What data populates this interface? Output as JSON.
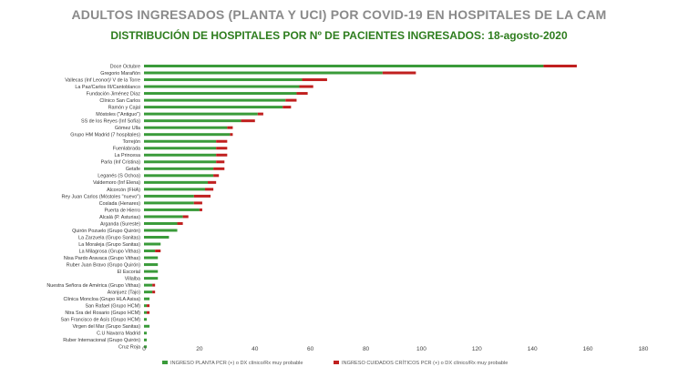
{
  "title": "ADULTOS INGRESADOS (PLANTA Y UCI) POR COVID-19 EN HOSPITALES DE LA CAM",
  "subtitle": "DISTRIBUCIÓN DE HOSPITALES POR Nº DE PACIENTES INGRESADOS: 18-agosto-2020",
  "chart_data": {
    "type": "bar",
    "orientation": "horizontal",
    "stacked": true,
    "title": "DISTRIBUCIÓN DE HOSPITALES POR Nº DE PACIENTES INGRESADOS: 18-agosto-2020",
    "xlim": [
      0,
      180
    ],
    "xticks": [
      0,
      20,
      40,
      60,
      80,
      100,
      120,
      140,
      160,
      180
    ],
    "grid": false,
    "legend_position": "bottom",
    "categories": [
      "Doce Octubre",
      "Gregorio Marañón",
      "Vallecas (Inf Leonor)/ V de la Torre",
      "La Paz/Carlos III/Cantoblanco",
      "Fundación Jiménez Díaz",
      "Clínico San Carlos",
      "Ramón y Cajal",
      "Móstoles (\"Antiguo\")",
      "SS de los Reyes (Inf Sofía)",
      "Gómez Ulla",
      "Grupo HM Madrid (7 hospitales)",
      "Torrejón",
      "Fuenlabrada",
      "La Princesa",
      "Parla (Inf Cristina)",
      "Getafe",
      "Leganés (S Ochoa)",
      "Valdemoro (Inf Elena)",
      "Alcorcón (FHA)",
      "Rey Juan Carlos (Móstoles \"nuevo\")",
      "Coslada (Henares)",
      "Puerta de Hierro",
      "Alcalá (P. Asturias)",
      "Arganda (Sureste)",
      "Quirón Pozuelo (Grupo Quirón)",
      "La Zarzuela (Grupo Sanitas)",
      "La Moraleja (Grupo Sanitas)",
      "La Milagrosa (Grupo Vithas)",
      "Nisa Pardo Aravaca (Grupo Vithas)",
      "Ruber Juan Bravo (Grupo Quirón)",
      "El Escorial",
      "Villalba",
      "Nuestra Señora de América (Grupo Vithas)",
      "Aranjuez (Tajo)",
      "Clínica Moncloa (Grupo HLA Asisa)",
      "San Rafael (Grupo HCM)",
      "Ntra Sra del Rosario (Grupo HCM)",
      "San Francisco de Asís (Grupo HCM)",
      "Virgen del Mar (Grupo Sanitas)",
      "C.U Navarra Madrid",
      "Ruber Internacional (Grupo Quirón)",
      "Cruz Roja"
    ],
    "series": [
      {
        "name": "INGRESO PLANTA PCR (+) o DX clínico/Rx muy probable",
        "color": "#3a9b3a",
        "values": [
          144,
          86,
          57,
          56,
          55,
          51,
          50,
          41,
          35,
          30,
          31,
          26,
          26,
          26,
          26,
          25,
          25,
          23,
          22,
          18,
          18,
          20,
          14,
          12,
          12,
          9,
          6,
          4,
          5,
          5,
          5,
          5,
          3,
          3,
          2,
          1,
          1,
          1,
          2,
          1,
          1,
          1
        ]
      },
      {
        "name": "INGRESO CUIDADOS CRÍTICOS PCR (+) o DX clínico/Rx muy probable",
        "color": "#c0201f",
        "values": [
          12,
          12,
          9,
          5,
          4,
          4,
          3,
          2,
          5,
          2,
          1,
          4,
          4,
          4,
          3,
          4,
          2,
          3,
          3,
          6,
          3,
          1,
          2,
          2,
          0,
          0,
          0,
          2,
          0,
          0,
          0,
          0,
          1,
          1,
          0,
          1,
          1,
          0,
          0,
          0,
          0,
          0
        ]
      }
    ]
  }
}
